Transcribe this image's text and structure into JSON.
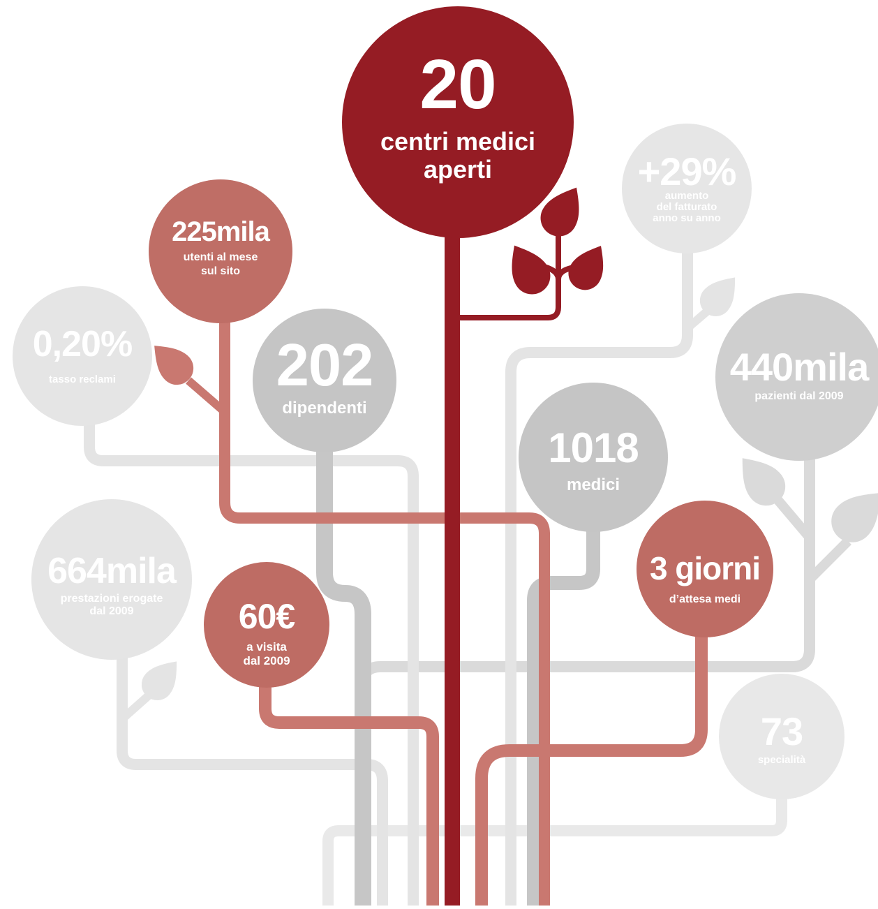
{
  "nodes": [
    {
      "value": "20",
      "label": [
        "centri medici",
        "aperti"
      ]
    },
    {
      "value": "+29%",
      "label": [
        "aumento",
        "del fatturato",
        "anno su anno"
      ]
    },
    {
      "value": "225mila",
      "label": [
        "utenti al mese",
        "sul sito"
      ]
    },
    {
      "value": "0,20%",
      "label": [
        "tasso reclami"
      ]
    },
    {
      "value": "202",
      "label": [
        "dipendenti"
      ]
    },
    {
      "value": "440mila",
      "label": [
        "pazienti dal 2009"
      ]
    },
    {
      "value": "1018",
      "label": [
        "medici"
      ]
    },
    {
      "value": "3 giorni",
      "label": [
        "d’attesa medi"
      ]
    },
    {
      "value": "664mila",
      "label": [
        "prestazioni erogate",
        "dal 2009"
      ]
    },
    {
      "value": "60€",
      "label": [
        "a visita",
        "dal 2009"
      ]
    },
    {
      "value": "73",
      "label": [
        "specialità"
      ]
    }
  ]
}
